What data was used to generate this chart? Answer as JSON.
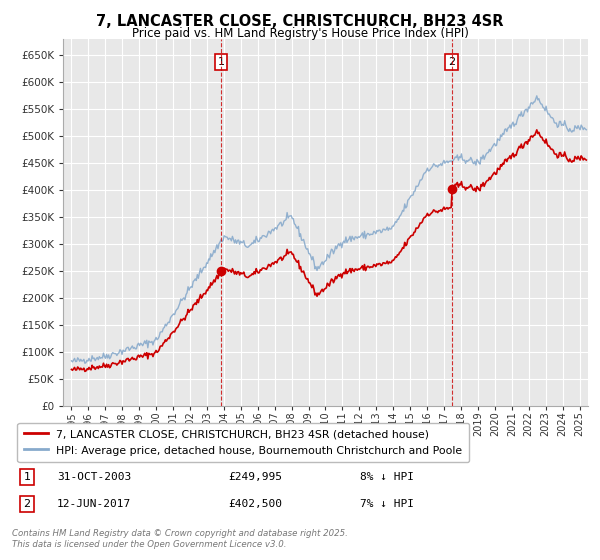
{
  "title": "7, LANCASTER CLOSE, CHRISTCHURCH, BH23 4SR",
  "subtitle": "Price paid vs. HM Land Registry's House Price Index (HPI)",
  "red_label": "7, LANCASTER CLOSE, CHRISTCHURCH, BH23 4SR (detached house)",
  "blue_label": "HPI: Average price, detached house, Bournemouth Christchurch and Poole",
  "marker1_date": "31-OCT-2003",
  "marker1_price": 249995,
  "marker1_note": "8% ↓ HPI",
  "marker2_date": "12-JUN-2017",
  "marker2_price": 402500,
  "marker2_note": "7% ↓ HPI",
  "marker1_x": 2003.833,
  "marker2_x": 2017.45,
  "footer": "Contains HM Land Registry data © Crown copyright and database right 2025.\nThis data is licensed under the Open Government Licence v3.0.",
  "ylim": [
    0,
    680000
  ],
  "xlim_start": 1994.5,
  "xlim_end": 2025.5,
  "background_color": "#ffffff",
  "plot_bg_color": "#e8e8e8",
  "grid_color": "#ffffff",
  "red_color": "#cc0000",
  "blue_color": "#88aacc",
  "vline_color": "#cc0000",
  "box_color": "#cc0000",
  "yticks": [
    0,
    50000,
    100000,
    150000,
    200000,
    250000,
    300000,
    350000,
    400000,
    450000,
    500000,
    550000,
    600000,
    650000
  ],
  "ytick_labels": [
    "£0",
    "£50K",
    "£100K",
    "£150K",
    "£200K",
    "£250K",
    "£300K",
    "£350K",
    "£400K",
    "£450K",
    "£500K",
    "£550K",
    "£600K",
    "£650K"
  ]
}
